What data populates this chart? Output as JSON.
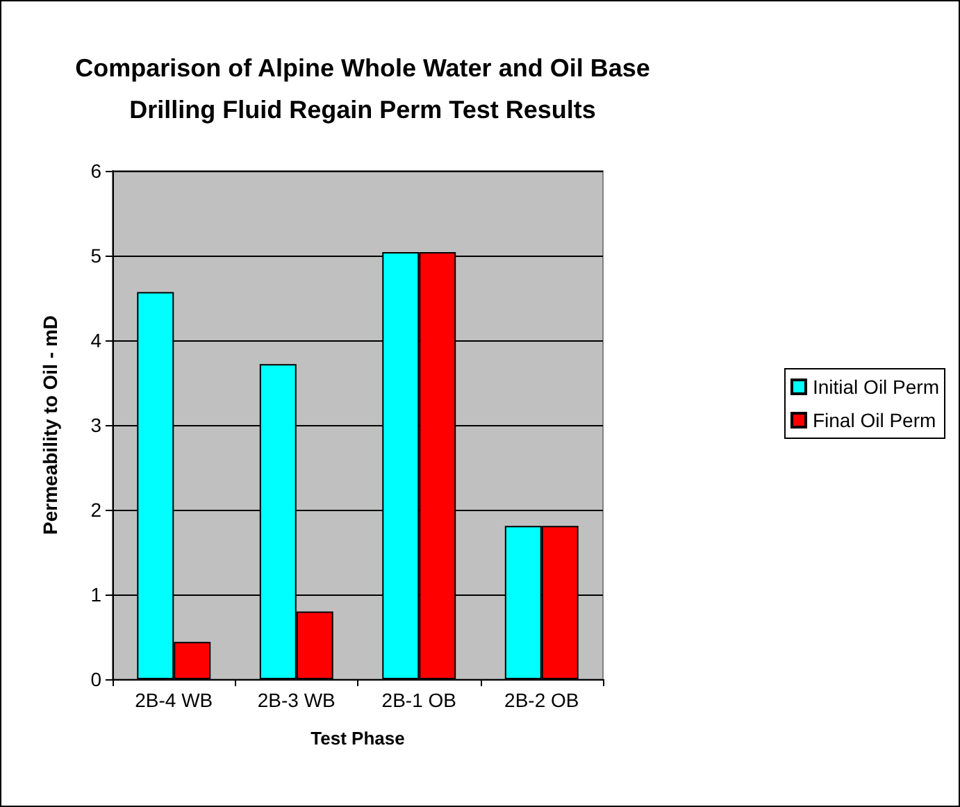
{
  "chart_data": {
    "type": "bar",
    "title": "Comparison of Alpine Whole Water and Oil Base\nDrilling Fluid Regain Perm Test Results",
    "xlabel": "Test Phase",
    "ylabel": "Permeability to Oil - mD",
    "categories": [
      "2B-4 WB",
      "2B-3 WB",
      "2B-1 OB",
      "2B-2 OB"
    ],
    "series": [
      {
        "name": "Initial Oil Perm",
        "color": "#00ffff",
        "values": [
          4.57,
          3.72,
          5.04,
          1.81
        ]
      },
      {
        "name": "Final Oil Perm",
        "color": "#ff0000",
        "values": [
          0.44,
          0.8,
          5.04,
          1.81
        ]
      }
    ],
    "ylim": [
      0,
      6
    ],
    "yticks": [
      0,
      1,
      2,
      3,
      4,
      5,
      6
    ],
    "grid": "y",
    "legend": "right"
  }
}
